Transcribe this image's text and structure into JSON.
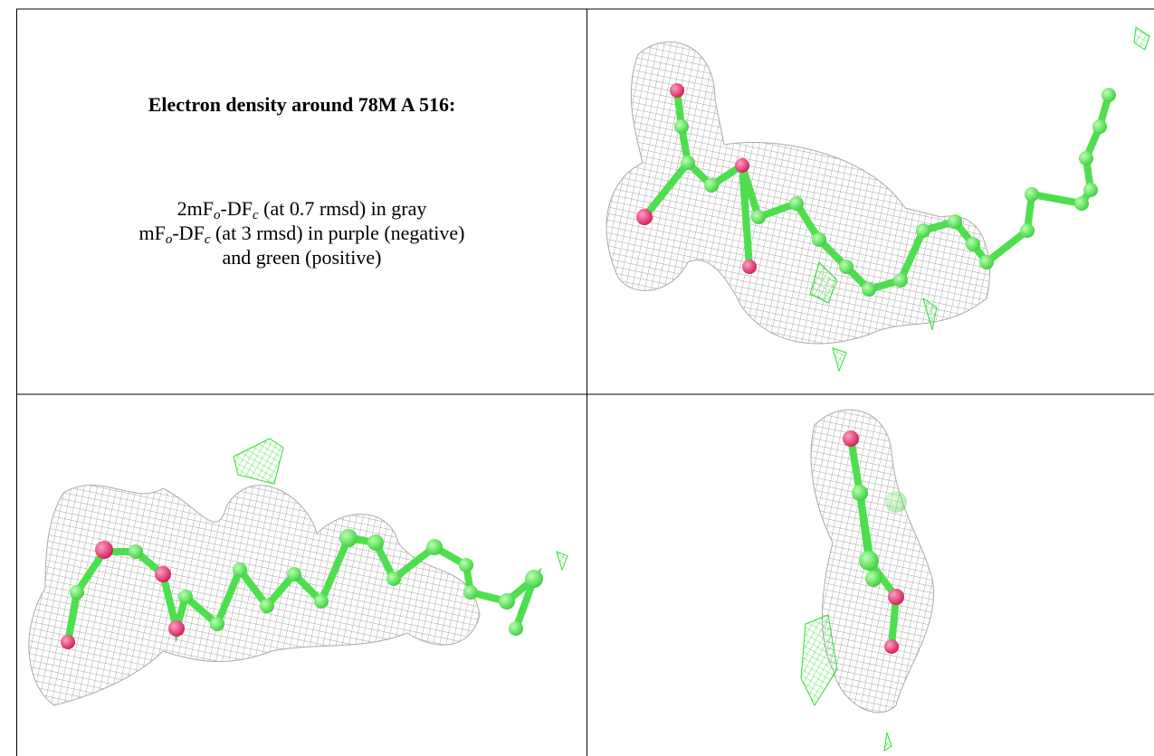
{
  "panel": {
    "title": "Electron density around 78M A 516:",
    "lines": [
      [
        "2mF",
        "o",
        "-DF",
        "c",
        " (at 0.7 rmsd) in gray"
      ],
      [
        "mF",
        "o",
        "-DF",
        "c",
        " (at 3 rmsd) in purple (negative)"
      ],
      [
        "and green (positive)"
      ]
    ]
  }
}
